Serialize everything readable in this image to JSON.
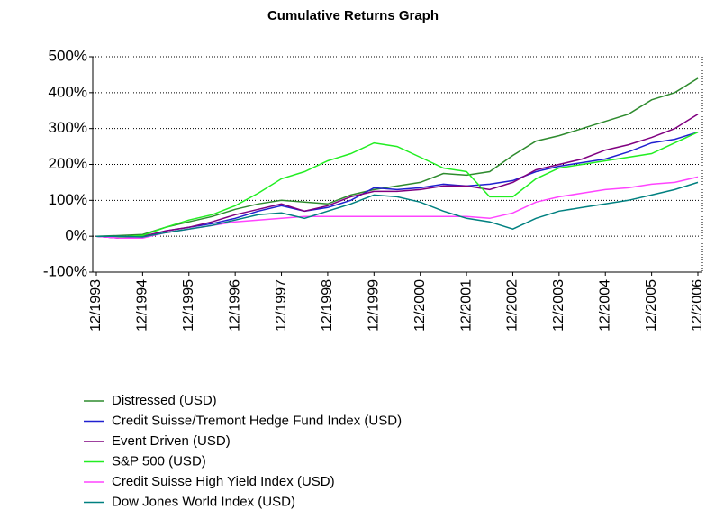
{
  "chart_data": {
    "type": "line",
    "title": "Cumulative Returns Graph",
    "categories": [
      "12/1993",
      null,
      "12/1994",
      null,
      "12/1995",
      null,
      "12/1996",
      null,
      "12/1997",
      null,
      "12/1998",
      null,
      "12/1999",
      null,
      "12/2000",
      null,
      "12/2001",
      null,
      "12/2002",
      null,
      "12/2003",
      null,
      "12/2004",
      null,
      "12/2005",
      null,
      "12/2006"
    ],
    "series": [
      {
        "name": "Distressed (USD)",
        "color": "#2e8b2e",
        "values": [
          0,
          2,
          5,
          25,
          40,
          55,
          75,
          90,
          100,
          95,
          90,
          115,
          130,
          140,
          150,
          175,
          170,
          180,
          225,
          265,
          280,
          300,
          320,
          340,
          380,
          400,
          440
        ]
      },
      {
        "name": "Credit Suisse/Tremont Hedge Fund Index (USD)",
        "color": "#2020d0",
        "values": [
          0,
          -5,
          -3,
          15,
          25,
          35,
          50,
          70,
          85,
          70,
          80,
          100,
          135,
          130,
          135,
          145,
          140,
          145,
          155,
          180,
          195,
          205,
          215,
          235,
          260,
          270,
          290
        ]
      },
      {
        "name": "Event Driven (USD)",
        "color": "#800080",
        "values": [
          0,
          -5,
          0,
          15,
          25,
          40,
          60,
          75,
          90,
          70,
          85,
          110,
          125,
          125,
          130,
          140,
          140,
          130,
          150,
          185,
          200,
          215,
          240,
          255,
          275,
          300,
          340
        ]
      },
      {
        "name": "S&P 500 (USD)",
        "color": "#22ee22",
        "values": [
          0,
          -2,
          2,
          25,
          45,
          60,
          85,
          120,
          160,
          180,
          210,
          230,
          260,
          250,
          220,
          190,
          180,
          110,
          110,
          160,
          190,
          200,
          210,
          220,
          230,
          260,
          290
        ]
      },
      {
        "name": "Credit Suisse High Yield Index (USD)",
        "color": "#ff44ff",
        "values": [
          0,
          -5,
          -5,
          10,
          20,
          30,
          40,
          45,
          50,
          55,
          55,
          55,
          55,
          55,
          55,
          55,
          55,
          50,
          65,
          95,
          110,
          120,
          130,
          135,
          145,
          150,
          165
        ]
      },
      {
        "name": "Dow Jones World Index (USD)",
        "color": "#008080",
        "values": [
          0,
          0,
          -2,
          10,
          20,
          30,
          45,
          60,
          65,
          50,
          70,
          90,
          115,
          110,
          95,
          70,
          50,
          40,
          20,
          50,
          70,
          80,
          90,
          100,
          115,
          130,
          150
        ]
      }
    ],
    "ylim": [
      -100,
      500
    ],
    "yticks": [
      {
        "value": -100,
        "label": "-100%"
      },
      {
        "value": 0,
        "label": "0%"
      },
      {
        "value": 100,
        "label": "100%"
      },
      {
        "value": 200,
        "label": "200%"
      },
      {
        "value": 300,
        "label": "300%"
      },
      {
        "value": 400,
        "label": "400%"
      },
      {
        "value": 500,
        "label": "500%"
      }
    ],
    "grid": true,
    "legend": "bottom"
  }
}
